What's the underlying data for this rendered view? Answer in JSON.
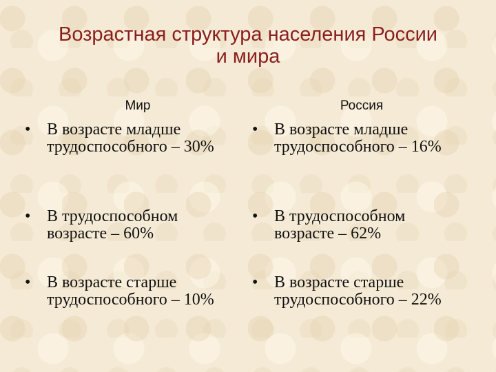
{
  "title": {
    "line1": "Возрастная структура населения России",
    "line2": "и мира"
  },
  "columns": [
    {
      "heading": "Мир",
      "items": [
        {
          "bullet": "•",
          "text": "В возрасте младше трудоспособного – 30%"
        },
        {
          "bullet": "•",
          "text": "В трудоспособном возрасте – 60%"
        },
        {
          "bullet": "•",
          "text": "В возрасте старше трудоспособного – 10%"
        }
      ]
    },
    {
      "heading": "Россия",
      "items": [
        {
          "bullet": "•",
          "text": "В возрасте младше трудоспособного – 16%"
        },
        {
          "bullet": "•",
          "text": "В трудоспособном возрасте – 62%"
        },
        {
          "bullet": "•",
          "text": "В возрасте старше трудоспособного – 22%"
        }
      ]
    }
  ]
}
